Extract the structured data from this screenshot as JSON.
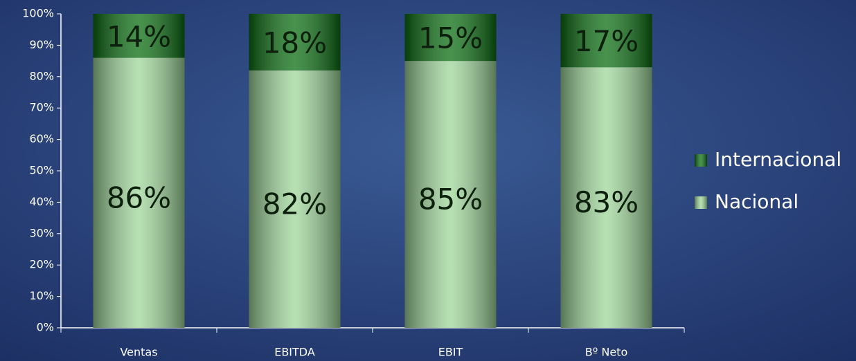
{
  "chart_data": {
    "type": "stacked_bar",
    "categories": [
      "Ventas",
      "EBITDA",
      "EBIT",
      "Bº Neto"
    ],
    "series": [
      {
        "name": "Nacional",
        "color": "#9fd69a",
        "values": [
          86,
          82,
          85,
          83
        ],
        "value_labels": [
          "86%",
          "82%",
          "85%",
          "83%"
        ]
      },
      {
        "name": "Internacional",
        "color": "#0b6e12",
        "values": [
          14,
          18,
          15,
          17
        ],
        "value_labels": [
          "14%",
          "18%",
          "15%",
          "17%"
        ]
      }
    ],
    "ylim": [
      0,
      100
    ],
    "yticks": [
      {
        "value": 0,
        "label": "0%"
      },
      {
        "value": 10,
        "label": "10%"
      },
      {
        "value": 20,
        "label": "20%"
      },
      {
        "value": 30,
        "label": "30%"
      },
      {
        "value": 40,
        "label": "40%"
      },
      {
        "value": 50,
        "label": "50%"
      },
      {
        "value": 60,
        "label": "60%"
      },
      {
        "value": 70,
        "label": "70%"
      },
      {
        "value": 80,
        "label": "80%"
      },
      {
        "value": 90,
        "label": "90%"
      },
      {
        "value": 100,
        "label": "100%"
      }
    ],
    "legend": "right"
  }
}
